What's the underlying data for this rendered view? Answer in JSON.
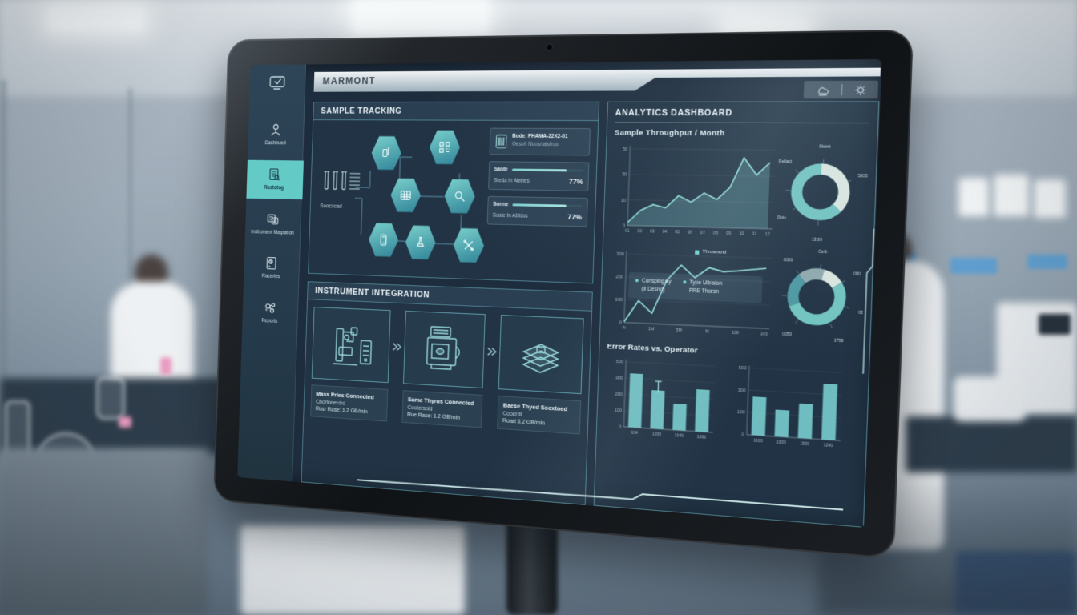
{
  "brand": "MARMONT",
  "topbar": {
    "icons": [
      "cloud-sync-icon",
      "gear-icon"
    ]
  },
  "sidebar": {
    "items": [
      {
        "label": "Dashbued",
        "icon": "user-icon"
      },
      {
        "label": "Rastotog",
        "icon": "sample-doc-icon",
        "active": true
      },
      {
        "label": "Instroment Magration",
        "icon": "instrument-icon"
      },
      {
        "label": "Racertes",
        "icon": "records-icon"
      },
      {
        "label": "Reports",
        "icon": "gear-cluster-icon"
      }
    ]
  },
  "sample_tracking": {
    "title": "SAMPLE TRACKING",
    "tubes_label": "Soocxcad",
    "info_card": {
      "line1": "Bode: PHAMA-22X2-61",
      "line2": "Oesoh Noosnalstroo"
    },
    "progress_cards": [
      {
        "name": "Sante",
        "sub": "Steda In Alertes",
        "value": "77%",
        "pct": 77
      },
      {
        "name": "Sonne",
        "sub": "Soale In Abtdos",
        "value": "77%",
        "pct": 77
      }
    ],
    "hex_icons": [
      "vial-icon",
      "qr-code-icon",
      "plate-grid-icon",
      "search-icon",
      "device-icon",
      "flask-icon",
      "tools-icon"
    ]
  },
  "instrument_integration": {
    "title": "INSTRUMENT INTEGRATION",
    "cards": [
      {
        "art": "mass-spec-illustration",
        "lines": [
          "Mass Pries Connected",
          "Cbortonerdrd",
          "Rusr Rase: 1.2 GB/min"
        ]
      },
      {
        "art": "analyzer-illustration",
        "lines": [
          "Same Thyrus Connected",
          "Coolersold",
          "Rue Rase: 1.2 GB/min"
        ]
      },
      {
        "art": "plate-stack-illustration",
        "lines": [
          "Baese Thyed Soextoed",
          "Coocrdl",
          "Roart 3.2 GB/min"
        ]
      }
    ]
  },
  "analytics": {
    "title": "ANALYTICS DASHBOARD",
    "chart1_title": "Sample Throughput / Month",
    "legend_top": "Throsnsnd",
    "legend": [
      {
        "label": "Conspingaly",
        "sub": "(Ii Desnd)"
      },
      {
        "label": "Type Uibision",
        "sub": "PRE Thorsn"
      }
    ],
    "error_title": "Error Rates vs. Operator"
  },
  "colors": {
    "accent_teal": "#63cac6",
    "chart_line": "#8fd9d6",
    "bar_fill": "#76c9cb",
    "donut_teal": "#72c3c1",
    "donut_light": "#d9e5df",
    "panel_border": "#6cb2c0",
    "screen_bg": "#1e2d3e",
    "silver_bar": "#c3d0d8"
  },
  "chart_data": [
    {
      "type": "line",
      "name": "sample-throughput-by-month",
      "title": "Sample Throughput / Month",
      "x": [
        "01",
        "02",
        "03",
        "04",
        "05",
        "06",
        "07",
        "08",
        "09",
        "10",
        "11",
        "12"
      ],
      "values": [
        2,
        10,
        14,
        12,
        20,
        16,
        22,
        18,
        26,
        45,
        34,
        42
      ],
      "ylim": [
        0,
        50
      ],
      "yticks": [
        "0",
        "10",
        "30",
        "50"
      ],
      "area": true,
      "grid": true,
      "legend_position": "none"
    },
    {
      "type": "donut",
      "name": "status-distribution",
      "labels": [
        "Mateb",
        "Reftact",
        "50035",
        "Ctits",
        "Dtrts",
        "13.09"
      ],
      "slices": [
        {
          "value": 37,
          "color": "#d9e5df"
        },
        {
          "value": 63,
          "color": "#72c3c1"
        }
      ],
      "start_angle": -90
    },
    {
      "type": "line",
      "name": "throughput-comparison",
      "x": [
        "4i",
        "1M",
        "5M",
        "M",
        "100",
        "100"
      ],
      "values": [
        5,
        130,
        60,
        255,
        345,
        275,
        335,
        315,
        322,
        332,
        342
      ],
      "ylim": [
        0,
        400
      ],
      "yticks": [
        "0",
        "100",
        "200",
        "300"
      ],
      "area": false,
      "grid": true,
      "legend_position": "overlay"
    },
    {
      "type": "donut",
      "name": "type-distribution",
      "labels": [
        "6000",
        "Cutb",
        "090",
        "094",
        "009",
        "0059",
        "1799"
      ],
      "slices": [
        {
          "value": 15,
          "color": "#8fa9ae"
        },
        {
          "value": 12,
          "color": "#d9e5df"
        },
        {
          "value": 53,
          "color": "#72c3c1"
        },
        {
          "value": 20,
          "color": "#4e98a2"
        }
      ],
      "start_angle": -130
    },
    {
      "type": "bar",
      "name": "error-rates-operator-a",
      "categories": [
        "104",
        "1009",
        "1049",
        "1989"
      ],
      "values": [
        330,
        235,
        160,
        255
      ],
      "ylim": [
        0,
        400
      ],
      "yticks": [
        "0",
        "100",
        "200",
        "300",
        "500"
      ],
      "whisker_index": 1,
      "grid": true
    },
    {
      "type": "bar",
      "name": "error-rates-operator-b",
      "categories": [
        "1008",
        "1909",
        "1509",
        "1049"
      ],
      "values": [
        230,
        160,
        205,
        330
      ],
      "ylim": [
        0,
        400
      ],
      "yticks": [
        "0",
        "100",
        "300",
        "500"
      ],
      "grid": true
    }
  ]
}
